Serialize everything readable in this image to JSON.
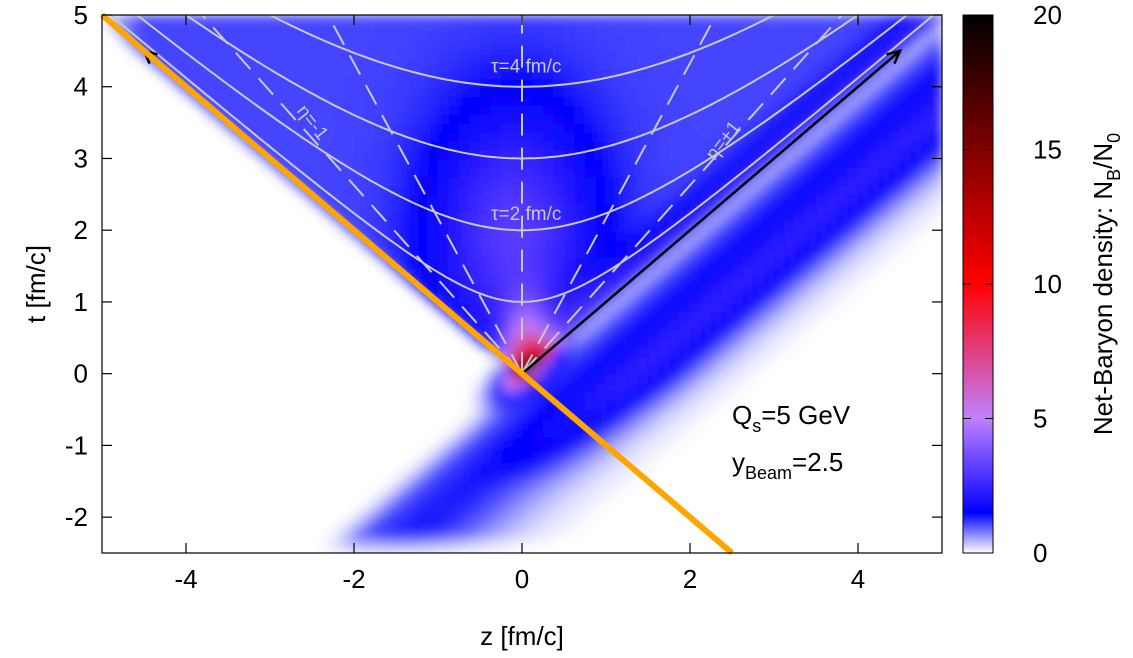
{
  "chart_data": {
    "type": "heatmap",
    "xlabel": "z [fm/c]",
    "ylabel": "t [fm/c]",
    "xlim": [
      -5,
      5
    ],
    "ylim": [
      -2.5,
      5
    ],
    "xticks": [
      "-4",
      "-2",
      "0",
      "2",
      "4"
    ],
    "xtick_values": [
      -4,
      -2,
      0,
      2,
      4
    ],
    "yticks": [
      "-2",
      "-1",
      "0",
      "1",
      "2",
      "3",
      "4",
      "5"
    ],
    "ytick_values": [
      -2,
      -1,
      0,
      1,
      2,
      3,
      4,
      5
    ],
    "colorbar": {
      "label_main": "Net-Baryon density: N",
      "label_sub_b": "B",
      "label_mid": "/N",
      "label_sub_0": "0",
      "range": [
        0,
        20
      ],
      "ticks": [
        "0",
        "5",
        "10",
        "15",
        "20"
      ],
      "tick_values": [
        0,
        5,
        10,
        15,
        20
      ],
      "colors": [
        {
          "value": 0,
          "color": "#ffffff"
        },
        {
          "value": 1.5,
          "color": "#0000ff"
        },
        {
          "value": 5,
          "color": "#c080ff"
        },
        {
          "value": 10,
          "color": "#ff0000"
        },
        {
          "value": 20,
          "color": "#000000"
        }
      ]
    },
    "proper_time_curves": [
      {
        "tau": 1
      },
      {
        "tau": 2,
        "label": "τ=2 fm/c"
      },
      {
        "tau": 3
      },
      {
        "tau": 4,
        "label": "τ=4 fm/c"
      }
    ],
    "rapidity_lines": [
      {
        "eta": -1,
        "label": "η=-1"
      },
      {
        "eta": -0.5
      },
      {
        "eta": 0
      },
      {
        "eta": 0.5
      },
      {
        "eta": 1,
        "label": "η=+1"
      }
    ],
    "light_cone_arrows": [
      {
        "from": [
          0,
          0
        ],
        "to": [
          -4.5,
          4.5
        ]
      },
      {
        "from": [
          0,
          0
        ],
        "to": [
          4.5,
          4.5
        ]
      }
    ],
    "nucleus_line": {
      "from": [
        -5,
        5
      ],
      "to": [
        2.5,
        -2.5
      ],
      "color": "#ffa500"
    },
    "annotations": {
      "qs_main": "Q",
      "qs_sub": "s",
      "qs_value": "=5 GeV",
      "ybeam_main": "y",
      "ybeam_sub": "Beam",
      "ybeam_value": "=2.5"
    }
  }
}
